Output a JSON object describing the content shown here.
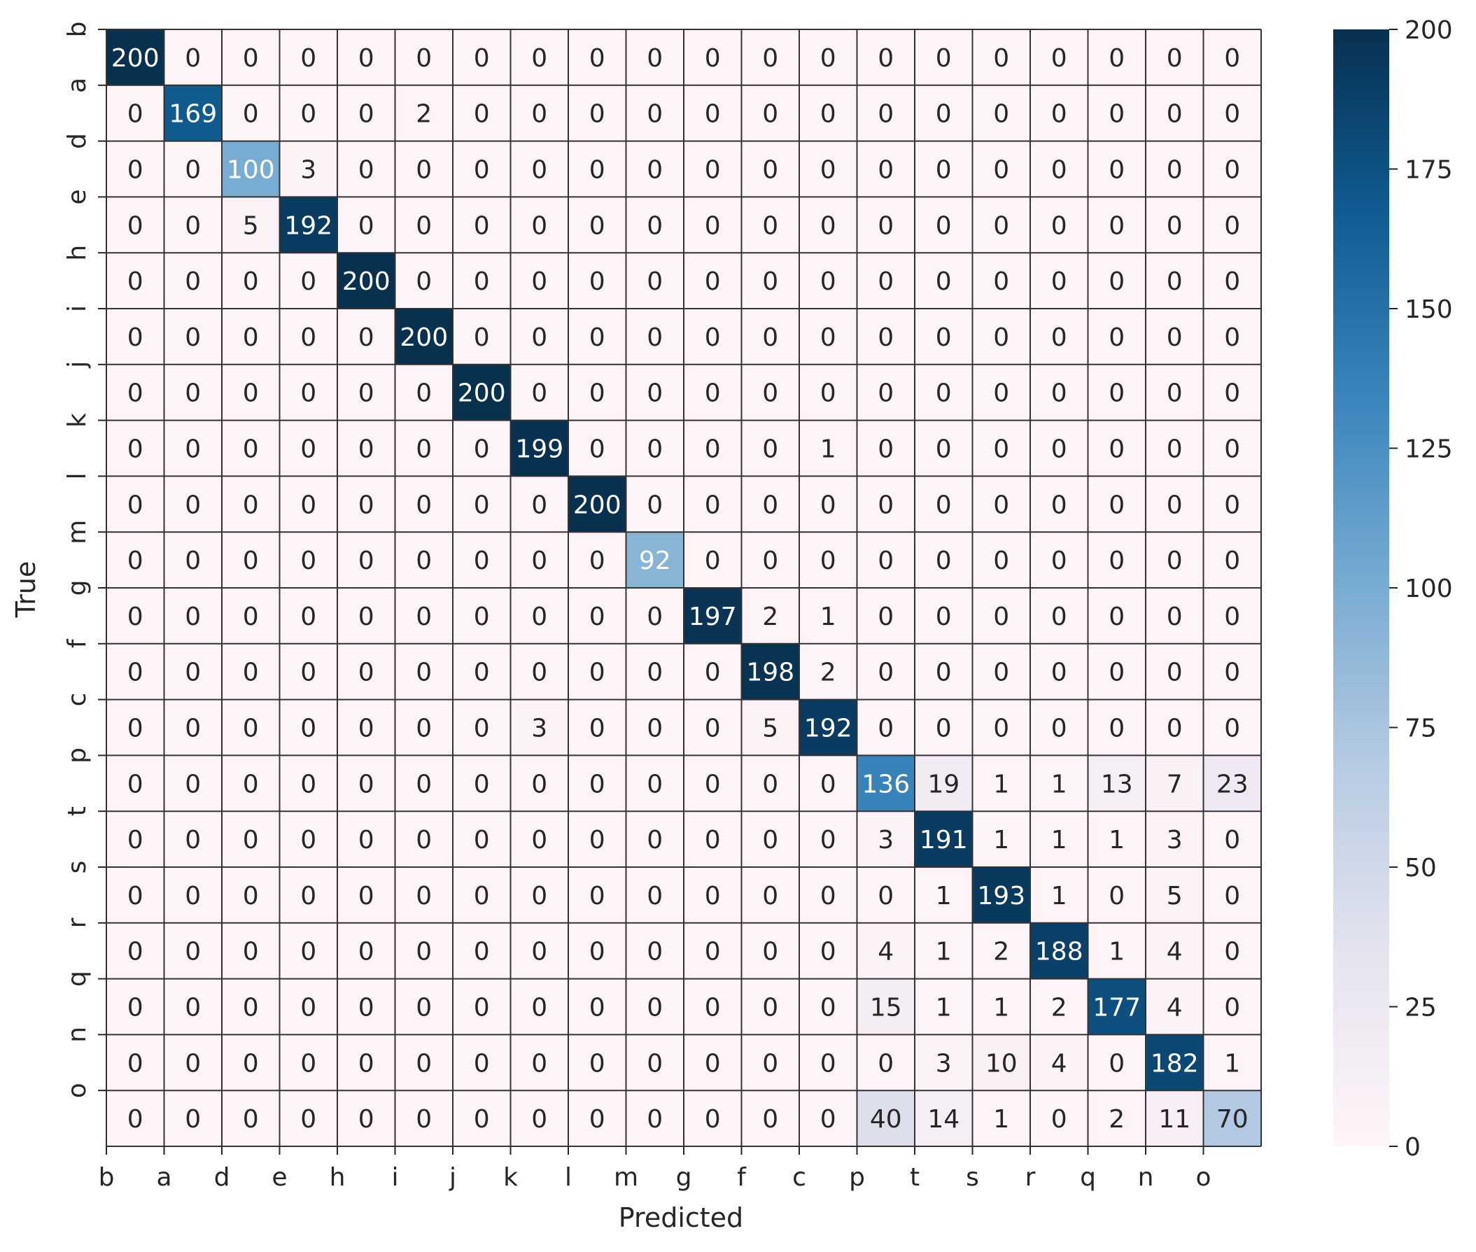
{
  "chart_data": {
    "type": "heatmap",
    "title": "",
    "xlabel": "Predicted",
    "ylabel": "True",
    "x_categories": [
      "b",
      "a",
      "d",
      "e",
      "h",
      "i",
      "j",
      "k",
      "l",
      "m",
      "g",
      "f",
      "c",
      "p",
      "t",
      "s",
      "r",
      "q",
      "n",
      "o"
    ],
    "y_categories": [
      "b",
      "a",
      "d",
      "e",
      "h",
      "i",
      "j",
      "k",
      "l",
      "m",
      "g",
      "f",
      "c",
      "p",
      "t",
      "s",
      "r",
      "q",
      "n",
      "o"
    ],
    "matrix": [
      [
        200,
        0,
        0,
        0,
        0,
        0,
        0,
        0,
        0,
        0,
        0,
        0,
        0,
        0,
        0,
        0,
        0,
        0,
        0,
        0
      ],
      [
        0,
        169,
        0,
        0,
        0,
        2,
        0,
        0,
        0,
        0,
        0,
        0,
        0,
        0,
        0,
        0,
        0,
        0,
        0,
        0
      ],
      [
        0,
        0,
        100,
        3,
        0,
        0,
        0,
        0,
        0,
        0,
        0,
        0,
        0,
        0,
        0,
        0,
        0,
        0,
        0,
        0
      ],
      [
        0,
        0,
        5,
        192,
        0,
        0,
        0,
        0,
        0,
        0,
        0,
        0,
        0,
        0,
        0,
        0,
        0,
        0,
        0,
        0
      ],
      [
        0,
        0,
        0,
        0,
        200,
        0,
        0,
        0,
        0,
        0,
        0,
        0,
        0,
        0,
        0,
        0,
        0,
        0,
        0,
        0
      ],
      [
        0,
        0,
        0,
        0,
        0,
        200,
        0,
        0,
        0,
        0,
        0,
        0,
        0,
        0,
        0,
        0,
        0,
        0,
        0,
        0
      ],
      [
        0,
        0,
        0,
        0,
        0,
        0,
        200,
        0,
        0,
        0,
        0,
        0,
        0,
        0,
        0,
        0,
        0,
        0,
        0,
        0
      ],
      [
        0,
        0,
        0,
        0,
        0,
        0,
        0,
        199,
        0,
        0,
        0,
        0,
        1,
        0,
        0,
        0,
        0,
        0,
        0,
        0
      ],
      [
        0,
        0,
        0,
        0,
        0,
        0,
        0,
        0,
        200,
        0,
        0,
        0,
        0,
        0,
        0,
        0,
        0,
        0,
        0,
        0
      ],
      [
        0,
        0,
        0,
        0,
        0,
        0,
        0,
        0,
        0,
        92,
        0,
        0,
        0,
        0,
        0,
        0,
        0,
        0,
        0,
        0
      ],
      [
        0,
        0,
        0,
        0,
        0,
        0,
        0,
        0,
        0,
        0,
        197,
        2,
        1,
        0,
        0,
        0,
        0,
        0,
        0,
        0
      ],
      [
        0,
        0,
        0,
        0,
        0,
        0,
        0,
        0,
        0,
        0,
        0,
        198,
        2,
        0,
        0,
        0,
        0,
        0,
        0,
        0
      ],
      [
        0,
        0,
        0,
        0,
        0,
        0,
        0,
        3,
        0,
        0,
        0,
        5,
        192,
        0,
        0,
        0,
        0,
        0,
        0,
        0
      ],
      [
        0,
        0,
        0,
        0,
        0,
        0,
        0,
        0,
        0,
        0,
        0,
        0,
        0,
        136,
        19,
        1,
        1,
        13,
        7,
        23
      ],
      [
        0,
        0,
        0,
        0,
        0,
        0,
        0,
        0,
        0,
        0,
        0,
        0,
        0,
        3,
        191,
        1,
        1,
        1,
        3,
        0
      ],
      [
        0,
        0,
        0,
        0,
        0,
        0,
        0,
        0,
        0,
        0,
        0,
        0,
        0,
        0,
        1,
        193,
        1,
        0,
        5,
        0
      ],
      [
        0,
        0,
        0,
        0,
        0,
        0,
        0,
        0,
        0,
        0,
        0,
        0,
        0,
        4,
        1,
        2,
        188,
        1,
        4,
        0
      ],
      [
        0,
        0,
        0,
        0,
        0,
        0,
        0,
        0,
        0,
        0,
        0,
        0,
        0,
        15,
        1,
        1,
        2,
        177,
        4,
        0
      ],
      [
        0,
        0,
        0,
        0,
        0,
        0,
        0,
        0,
        0,
        0,
        0,
        0,
        0,
        0,
        3,
        10,
        4,
        0,
        182,
        1
      ],
      [
        0,
        0,
        0,
        0,
        0,
        0,
        0,
        0,
        0,
        0,
        0,
        0,
        0,
        40,
        14,
        1,
        0,
        2,
        11,
        70
      ]
    ],
    "colorbar": {
      "min": 0,
      "max": 200,
      "ticks": [
        0,
        25,
        50,
        75,
        100,
        125,
        150,
        175,
        200
      ]
    },
    "colormap": [
      "#fff5f8",
      "#e6e4ef",
      "#b9cce3",
      "#79acd2",
      "#3a86bd",
      "#0f5d94",
      "#08304f"
    ],
    "grid": true,
    "grid_color": "#333333",
    "text_dark": "#262626",
    "text_light": "#ffffff"
  }
}
